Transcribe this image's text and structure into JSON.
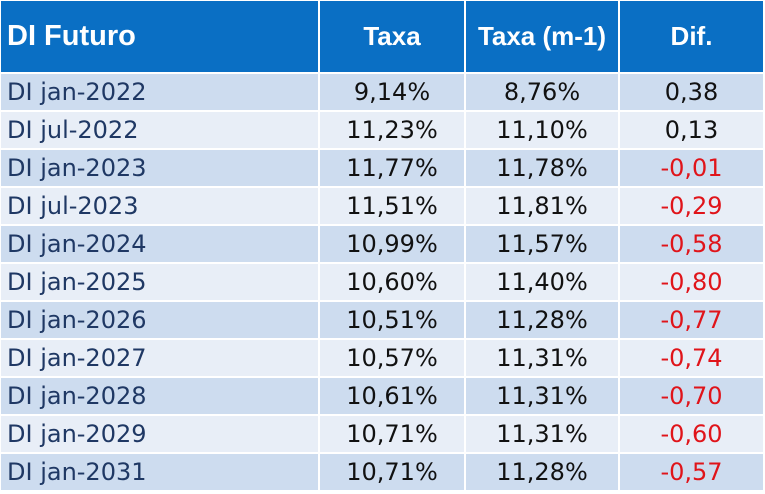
{
  "table": {
    "headers": [
      "DI Futuro",
      "Taxa",
      "Taxa (m-1)",
      "Dif."
    ],
    "rows": [
      {
        "contract": "DI  jan-2022",
        "taxa": "9,14%",
        "taxa_m1": "8,76%",
        "dif": "0,38"
      },
      {
        "contract": "DI  jul-2022",
        "taxa": "11,23%",
        "taxa_m1": "11,10%",
        "dif": "0,13"
      },
      {
        "contract": "DI  jan-2023",
        "taxa": "11,77%",
        "taxa_m1": "11,78%",
        "dif": "-0,01"
      },
      {
        "contract": "DI  jul-2023",
        "taxa": "11,51%",
        "taxa_m1": "11,81%",
        "dif": "-0,29"
      },
      {
        "contract": "DI  jan-2024",
        "taxa": "10,99%",
        "taxa_m1": "11,57%",
        "dif": "-0,58"
      },
      {
        "contract": "DI  jan-2025",
        "taxa": "10,60%",
        "taxa_m1": "11,40%",
        "dif": "-0,80"
      },
      {
        "contract": "DI  jan-2026",
        "taxa": "10,51%",
        "taxa_m1": "11,28%",
        "dif": "-0,77"
      },
      {
        "contract": "DI  jan-2027",
        "taxa": "10,57%",
        "taxa_m1": "11,31%",
        "dif": "-0,74"
      },
      {
        "contract": "DI  jan-2028",
        "taxa": "10,61%",
        "taxa_m1": "11,31%",
        "dif": "-0,70"
      },
      {
        "contract": "DI  jan-2029",
        "taxa": "10,71%",
        "taxa_m1": "11,31%",
        "dif": "-0,60"
      },
      {
        "contract": "DI  jan-2031",
        "taxa": "10,71%",
        "taxa_m1": "11,28%",
        "dif": "-0,57"
      }
    ]
  },
  "colors": {
    "header_bg": "#0a6fc4",
    "header_text": "#ffffff",
    "row_odd": "#cddcef",
    "row_even": "#e8eef7",
    "negative_text": "#e0141a"
  }
}
